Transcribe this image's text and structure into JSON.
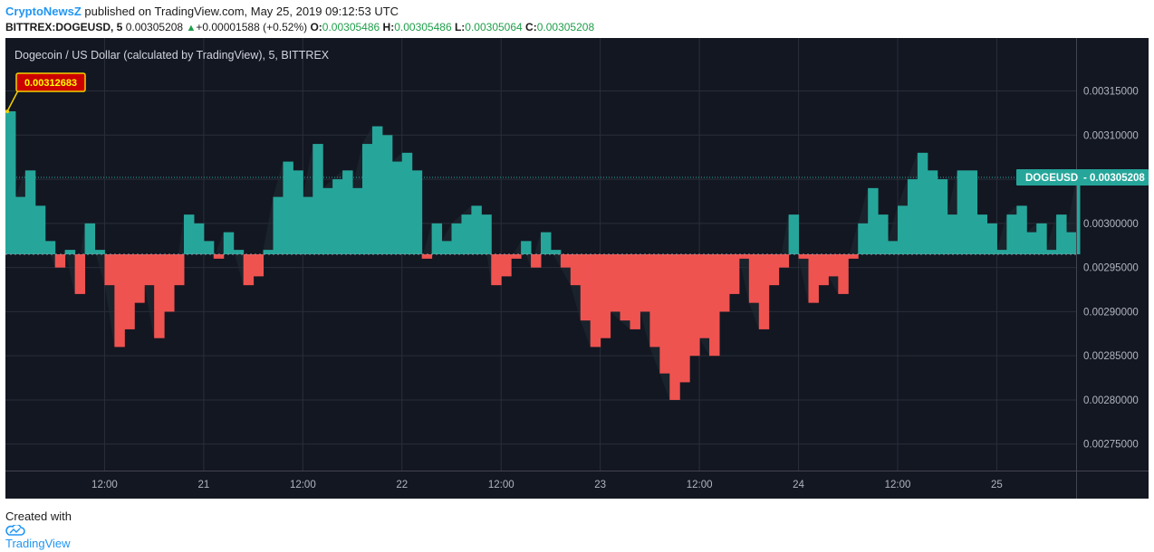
{
  "header": {
    "publisher": "CryptoNewsZ",
    "published_text": "published on TradingView.com, May 25, 2019 09:12:53 UTC"
  },
  "quote": {
    "symbol": "BITTREX:DOGEUSD, 5",
    "last": "0.00305208",
    "change": "+0.00001588 (+0.52%)",
    "o_label": "O:",
    "o": "0.00305486",
    "h_label": "H:",
    "h": "0.00305486",
    "l_label": "L:",
    "l": "0.00305064",
    "c_label": "C:",
    "c": "0.00305208"
  },
  "footer": {
    "created_with": "Created with",
    "brand": "TradingView"
  },
  "chart_data": {
    "type": "area",
    "title": "Dogecoin / US Dollar (calculated by TradingView), 5, BITTREX",
    "series_label": "DOGEUSD",
    "last_value": 0.00305208,
    "last_value_text": "0.00305208",
    "baseline_value": 0.002965,
    "peak_annotation": {
      "label": "0.00312683",
      "value": 0.00312683
    },
    "x_ticks": [
      "12:00",
      "21",
      "12:00",
      "22",
      "12:00",
      "23",
      "12:00",
      "24",
      "12:00",
      "25"
    ],
    "y_ticks": [
      "0.00275000",
      "0.00280000",
      "0.00285000",
      "0.00290000",
      "0.00295000",
      "0.00300000",
      "0.00305000",
      "0.00310000",
      "0.00315000"
    ],
    "y_tick_values": [
      0.00275,
      0.0028,
      0.00285,
      0.0029,
      0.00295,
      0.003,
      0.00305,
      0.0031,
      0.00315
    ],
    "ylim": [
      0.00272,
      0.00321
    ],
    "xlim": [
      0,
      108
    ],
    "x_tick_positions": [
      10,
      20,
      30,
      40,
      50,
      60,
      70,
      80,
      90,
      100
    ],
    "x_unit": "hours from May 20, 2019 ~01:30 UTC",
    "colors": {
      "background": "#131722",
      "above": "#26a69a",
      "below": "#ef5350",
      "grid": "#2a2e39",
      "label_bg": "#26a69a",
      "annotation_bg": "#cc0000",
      "annotation_border": "#f5d000",
      "annotation_text": "#ffff00"
    },
    "grid": true,
    "points": [
      [
        0,
        0.003127
      ],
      [
        1,
        0.00303
      ],
      [
        2,
        0.00306
      ],
      [
        3,
        0.00302
      ],
      [
        4,
        0.00298
      ],
      [
        5,
        0.00295
      ],
      [
        6,
        0.00297
      ],
      [
        7,
        0.00292
      ],
      [
        8,
        0.003
      ],
      [
        9,
        0.00297
      ],
      [
        10,
        0.00293
      ],
      [
        11,
        0.00286
      ],
      [
        12,
        0.00288
      ],
      [
        13,
        0.00291
      ],
      [
        14,
        0.00293
      ],
      [
        15,
        0.00287
      ],
      [
        16,
        0.0029
      ],
      [
        17,
        0.00293
      ],
      [
        18,
        0.00301
      ],
      [
        19,
        0.003
      ],
      [
        20,
        0.00298
      ],
      [
        21,
        0.00296
      ],
      [
        22,
        0.00299
      ],
      [
        23,
        0.00297
      ],
      [
        24,
        0.00293
      ],
      [
        25,
        0.00294
      ],
      [
        26,
        0.00297
      ],
      [
        27,
        0.00303
      ],
      [
        28,
        0.00307
      ],
      [
        29,
        0.00306
      ],
      [
        30,
        0.00303
      ],
      [
        31,
        0.00309
      ],
      [
        32,
        0.00304
      ],
      [
        33,
        0.00305
      ],
      [
        34,
        0.00306
      ],
      [
        35,
        0.00304
      ],
      [
        36,
        0.00309
      ],
      [
        37,
        0.00311
      ],
      [
        38,
        0.0031
      ],
      [
        39,
        0.00307
      ],
      [
        40,
        0.00308
      ],
      [
        41,
        0.00306
      ],
      [
        42,
        0.00296
      ],
      [
        43,
        0.003
      ],
      [
        44,
        0.00298
      ],
      [
        45,
        0.003
      ],
      [
        46,
        0.00301
      ],
      [
        47,
        0.00302
      ],
      [
        48,
        0.00301
      ],
      [
        49,
        0.00293
      ],
      [
        50,
        0.00294
      ],
      [
        51,
        0.00296
      ],
      [
        52,
        0.00298
      ],
      [
        53,
        0.00295
      ],
      [
        54,
        0.00299
      ],
      [
        55,
        0.00297
      ],
      [
        56,
        0.00295
      ],
      [
        57,
        0.00293
      ],
      [
        58,
        0.00289
      ],
      [
        59,
        0.00286
      ],
      [
        60,
        0.00287
      ],
      [
        61,
        0.0029
      ],
      [
        62,
        0.00289
      ],
      [
        63,
        0.00288
      ],
      [
        64,
        0.0029
      ],
      [
        65,
        0.00286
      ],
      [
        66,
        0.00283
      ],
      [
        67,
        0.0028
      ],
      [
        68,
        0.00282
      ],
      [
        69,
        0.00285
      ],
      [
        70,
        0.00287
      ],
      [
        71,
        0.00285
      ],
      [
        72,
        0.0029
      ],
      [
        73,
        0.00292
      ],
      [
        74,
        0.00296
      ],
      [
        75,
        0.00291
      ],
      [
        76,
        0.00288
      ],
      [
        77,
        0.00293
      ],
      [
        78,
        0.00295
      ],
      [
        79,
        0.00301
      ],
      [
        80,
        0.00296
      ],
      [
        81,
        0.00291
      ],
      [
        82,
        0.00293
      ],
      [
        83,
        0.00294
      ],
      [
        84,
        0.00292
      ],
      [
        85,
        0.00296
      ],
      [
        86,
        0.003
      ],
      [
        87,
        0.00304
      ],
      [
        88,
        0.00301
      ],
      [
        89,
        0.00298
      ],
      [
        90,
        0.00302
      ],
      [
        91,
        0.00305
      ],
      [
        92,
        0.00308
      ],
      [
        93,
        0.00306
      ],
      [
        94,
        0.00305
      ],
      [
        95,
        0.00301
      ],
      [
        96,
        0.00306
      ],
      [
        97,
        0.00306
      ],
      [
        98,
        0.00301
      ],
      [
        99,
        0.003
      ],
      [
        100,
        0.00297
      ],
      [
        101,
        0.00301
      ],
      [
        102,
        0.00302
      ],
      [
        103,
        0.00299
      ],
      [
        104,
        0.003
      ],
      [
        105,
        0.00297
      ],
      [
        106,
        0.00301
      ],
      [
        107,
        0.00299
      ],
      [
        108,
        0.00305
      ]
    ]
  }
}
